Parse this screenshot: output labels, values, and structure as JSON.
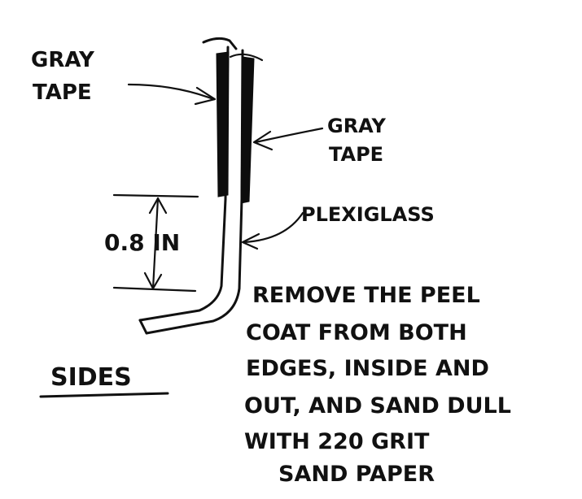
{
  "labels": {
    "gray_tape_left_1": "GRAY",
    "gray_tape_left_2": "TAPE",
    "gray_tape_right_1": "GRAY",
    "gray_tape_right_2": "TAPE",
    "plexiglass": "PLEXIGLASS",
    "dimension": "0.8 IN",
    "sides": "SIDES"
  },
  "instructions": [
    "REMOVE THE PEEL",
    "COAT FROM BOTH",
    "EDGES, INSIDE AND",
    "OUT, AND SAND DULL",
    "WITH 220 GRIT",
    "SAND PAPER"
  ]
}
